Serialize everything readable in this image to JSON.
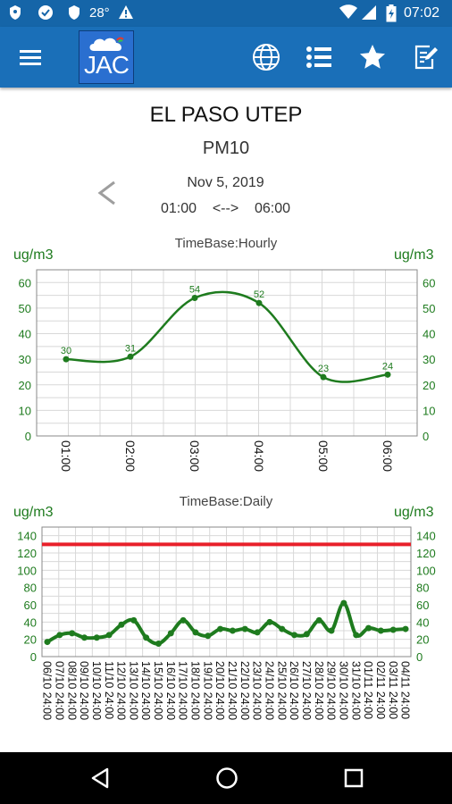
{
  "status_bar": {
    "temperature": "28°",
    "time": "07:02",
    "icons": [
      "shield-icon",
      "thumb-icon",
      "shield-small-icon",
      "warning-icon",
      "wifi-icon",
      "signal-icon",
      "battery-icon"
    ]
  },
  "app_bar": {
    "logo_text": "JAC",
    "icons": [
      "menu-icon",
      "globe-icon",
      "list-icon",
      "star-icon",
      "edit-note-icon"
    ]
  },
  "header": {
    "station": "EL PASO UTEP",
    "pollutant": "PM10",
    "date": "Nov 5, 2019",
    "time_start": "01:00",
    "time_arrow": "<-->",
    "time_end": "06:00"
  },
  "chart_data": [
    {
      "type": "line",
      "title": "TimeBase:Hourly",
      "ylabel_left": "ug/m3",
      "ylabel_right": "ug/m3",
      "categories": [
        "01:00",
        "02:00",
        "03:00",
        "04:00",
        "05:00",
        "06:00"
      ],
      "values": [
        30,
        31,
        54,
        52,
        23,
        24
      ],
      "ylim": [
        0,
        65
      ],
      "yticks": [
        0,
        10,
        20,
        30,
        40,
        50,
        60
      ],
      "grid": true,
      "color": "#1e7b1e"
    },
    {
      "type": "line",
      "title": "TimeBase:Daily",
      "ylabel_left": "ug/m3",
      "ylabel_right": "ug/m3",
      "categories": [
        "06/10 24:00",
        "07/10 24:00",
        "08/10 24:00",
        "09/10 24:00",
        "10/10 24:00",
        "11/10 24:00",
        "12/10 24:00",
        "13/10 24:00",
        "14/10 24:00",
        "15/10 24:00",
        "16/10 24:00",
        "17/10 24:00",
        "18/10 24:00",
        "19/10 24:00",
        "20/10 24:00",
        "21/10 24:00",
        "22/10 24:00",
        "23/10 24:00",
        "24/10 24:00",
        "25/10 24:00",
        "26/10 24:00",
        "27/10 24:00",
        "28/10 24:00",
        "29/10 24:00",
        "30/10 24:00",
        "31/10 24:00",
        "01/11 24:00",
        "02/11 24:00",
        "03/11 24:00",
        "04/11 24:00"
      ],
      "values": [
        17,
        25,
        27,
        22,
        22,
        25,
        37,
        42,
        22,
        15,
        27,
        42,
        28,
        24,
        32,
        30,
        32,
        28,
        40,
        32,
        25,
        26,
        42,
        30,
        62,
        25,
        33,
        30,
        31,
        32
      ],
      "threshold": 130,
      "threshold_color": "#e8202a",
      "ylim": [
        0,
        150
      ],
      "yticks": [
        0,
        20,
        40,
        60,
        80,
        100,
        120,
        140
      ],
      "grid": true,
      "color": "#1e7b1e"
    }
  ],
  "nav_bar": {
    "icons": [
      "back-icon",
      "home-icon",
      "recents-icon"
    ]
  }
}
